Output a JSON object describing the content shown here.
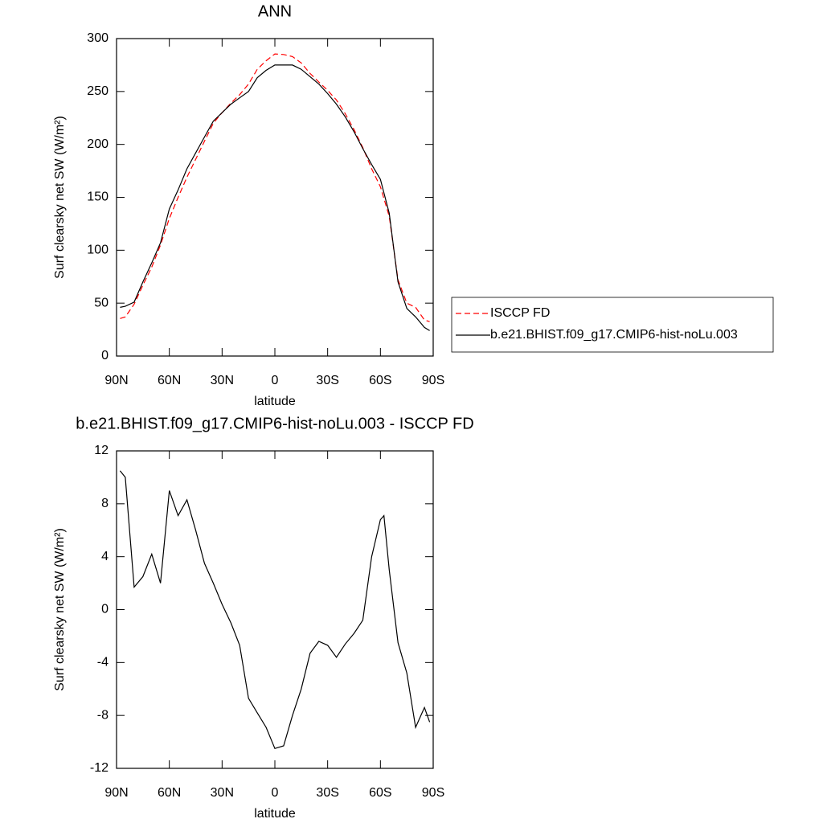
{
  "chart_data": [
    {
      "type": "line",
      "title": "ANN",
      "xlabel": "latitude",
      "ylabel": "Surf clearsky net SW (W/m²)",
      "x": [
        88,
        85,
        80,
        75,
        70,
        65,
        60,
        55,
        50,
        45,
        40,
        35,
        30,
        25,
        20,
        15,
        10,
        5,
        0,
        -5,
        -10,
        -15,
        -20,
        -25,
        -30,
        -35,
        -40,
        -45,
        -50,
        -55,
        -60,
        -65,
        -70,
        -75,
        -80,
        -85,
        -88
      ],
      "series": [
        {
          "name": "ISCCP FD",
          "color": "#ff0000",
          "dash": true,
          "values": [
            35.5,
            37,
            49,
            67,
            84,
            105,
            130,
            150,
            169,
            186,
            203,
            220,
            230,
            239,
            247,
            257,
            271,
            279,
            285.5,
            285,
            283,
            277,
            267,
            259,
            251,
            242,
            229,
            214,
            197,
            177,
            160,
            132,
            72,
            50,
            46,
            34,
            32.5
          ]
        },
        {
          "name": "b.e21.BHIST.f09_g17.CMIP6-hist-noLu.003",
          "color": "#000000",
          "dash": false,
          "values": [
            46,
            47,
            51,
            70,
            88,
            107,
            139,
            157,
            177,
            192,
            207,
            222,
            230,
            238,
            244,
            250,
            263,
            270,
            275,
            275,
            275,
            271,
            264,
            257,
            248,
            238,
            226,
            212,
            196,
            181,
            167,
            135,
            70,
            45,
            37,
            27,
            24
          ]
        }
      ],
      "xlim": [
        90,
        -90
      ],
      "xticks": [
        {
          "value": 90,
          "label": "90N"
        },
        {
          "value": 60,
          "label": "60N"
        },
        {
          "value": 30,
          "label": "30N"
        },
        0,
        {
          "value": -30,
          "label": "30S"
        },
        {
          "value": -60,
          "label": "60S"
        },
        {
          "value": -90,
          "label": "90S"
        }
      ],
      "ylim": [
        0,
        300
      ],
      "yticks": [
        0,
        50,
        100,
        150,
        200,
        250,
        300
      ],
      "legend": "right"
    },
    {
      "type": "line",
      "title": "b.e21.BHIST.f09_g17.CMIP6-hist-noLu.003 - ISCCP FD",
      "xlabel": "latitude",
      "ylabel": "Surf clearsky net SW (W/m²)",
      "x": [
        88,
        85,
        80,
        75,
        70,
        65,
        60,
        55,
        50,
        45,
        40,
        35,
        30,
        25,
        20,
        15,
        10,
        5,
        0,
        -5,
        -10,
        -15,
        -20,
        -25,
        -30,
        -35,
        -40,
        -45,
        -50,
        -55,
        -60,
        -62,
        -65,
        -70,
        -75,
        -80,
        -85,
        -88
      ],
      "values": [
        10.5,
        10,
        1.7,
        2.5,
        4.2,
        2.0,
        9.0,
        7.1,
        8.3,
        6,
        3.5,
        2,
        0.4,
        -1,
        -2.7,
        -6.7,
        -7.8,
        -8.9,
        -10.5,
        -10.3,
        -8,
        -6,
        -3.3,
        -2.4,
        -2.7,
        -3.6,
        -2.6,
        -1.8,
        -0.8,
        4,
        6.8,
        7.1,
        3,
        -2.5,
        -4.8,
        -8.9,
        -7.4,
        -8.5
      ],
      "color": "#000000",
      "xlim": [
        90,
        -90
      ],
      "xticks": [
        {
          "value": 90,
          "label": "90N"
        },
        {
          "value": 60,
          "label": "60N"
        },
        {
          "value": 30,
          "label": "30N"
        },
        0,
        {
          "value": -30,
          "label": "30S"
        },
        {
          "value": -60,
          "label": "60S"
        },
        {
          "value": -90,
          "label": "90S"
        }
      ],
      "ylim": [
        -12,
        12
      ],
      "yticks": [
        -12,
        -8,
        -4,
        0,
        4,
        8,
        12
      ]
    }
  ]
}
